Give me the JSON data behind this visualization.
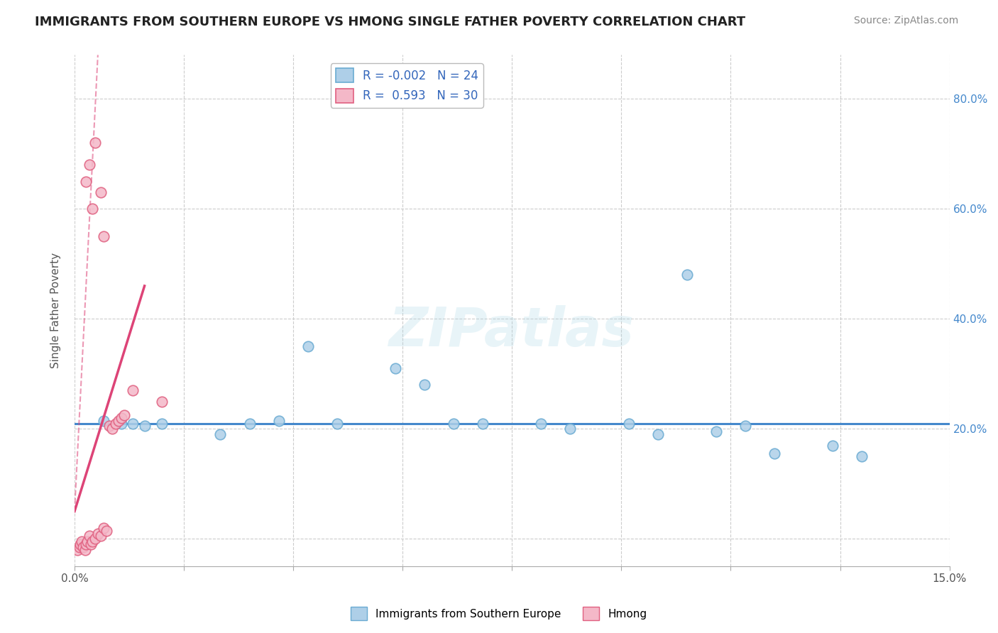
{
  "title": "IMMIGRANTS FROM SOUTHERN EUROPE VS HMONG SINGLE FATHER POVERTY CORRELATION CHART",
  "source": "Source: ZipAtlas.com",
  "ylabel": "Single Father Poverty",
  "xlim": [
    0.0,
    15.0
  ],
  "ylim": [
    -5.0,
    88.0
  ],
  "background_color": "#ffffff",
  "grid_color": "#cccccc",
  "title_color": "#222222",
  "title_fontsize": 13,
  "legend_r1": "-0.002",
  "legend_n1": "24",
  "legend_r2": "0.593",
  "legend_n2": "30",
  "blue_color": "#aecfe8",
  "pink_color": "#f4b8c8",
  "blue_edge_color": "#6aabd2",
  "pink_edge_color": "#e06080",
  "blue_line_color": "#4488cc",
  "pink_line_color": "#dd4477",
  "blue_scatter": [
    [
      0.5,
      21.5
    ],
    [
      0.8,
      21.0
    ],
    [
      1.0,
      21.0
    ],
    [
      1.2,
      20.5
    ],
    [
      1.5,
      21.0
    ],
    [
      2.5,
      19.0
    ],
    [
      3.0,
      21.0
    ],
    [
      3.5,
      21.5
    ],
    [
      4.0,
      35.0
    ],
    [
      4.5,
      21.0
    ],
    [
      5.5,
      31.0
    ],
    [
      6.0,
      28.0
    ],
    [
      7.0,
      21.0
    ],
    [
      8.0,
      21.0
    ],
    [
      8.5,
      20.0
    ],
    [
      9.5,
      21.0
    ],
    [
      10.0,
      19.0
    ],
    [
      10.5,
      48.0
    ],
    [
      11.0,
      19.5
    ],
    [
      11.5,
      20.5
    ],
    [
      12.0,
      15.5
    ],
    [
      13.0,
      17.0
    ],
    [
      13.5,
      15.0
    ],
    [
      6.5,
      21.0
    ]
  ],
  "pink_scatter": [
    [
      0.05,
      -2.0
    ],
    [
      0.08,
      -1.5
    ],
    [
      0.1,
      -1.0
    ],
    [
      0.12,
      -0.5
    ],
    [
      0.15,
      -1.5
    ],
    [
      0.18,
      -2.0
    ],
    [
      0.2,
      -1.0
    ],
    [
      0.22,
      -0.5
    ],
    [
      0.25,
      0.5
    ],
    [
      0.28,
      -1.0
    ],
    [
      0.3,
      -0.5
    ],
    [
      0.35,
      0.0
    ],
    [
      0.4,
      1.0
    ],
    [
      0.45,
      0.5
    ],
    [
      0.5,
      2.0
    ],
    [
      0.55,
      1.5
    ],
    [
      0.6,
      20.5
    ],
    [
      0.65,
      20.0
    ],
    [
      0.7,
      21.0
    ],
    [
      0.75,
      21.5
    ],
    [
      0.8,
      22.0
    ],
    [
      0.85,
      22.5
    ],
    [
      1.0,
      27.0
    ],
    [
      1.5,
      25.0
    ],
    [
      0.2,
      65.0
    ],
    [
      0.35,
      72.0
    ],
    [
      0.45,
      63.0
    ],
    [
      0.3,
      60.0
    ],
    [
      0.5,
      55.0
    ],
    [
      0.25,
      68.0
    ]
  ],
  "blue_reg_y0": 21.0,
  "blue_reg_y1": 21.0,
  "pink_reg_x0": 0.0,
  "pink_reg_y0": 5.0,
  "pink_reg_x1": 1.2,
  "pink_reg_y1": 46.0,
  "pink_dash_x0": 0.0,
  "pink_dash_y0": 5.0,
  "pink_dash_x1": 0.4,
  "pink_dash_y1": 88.0
}
